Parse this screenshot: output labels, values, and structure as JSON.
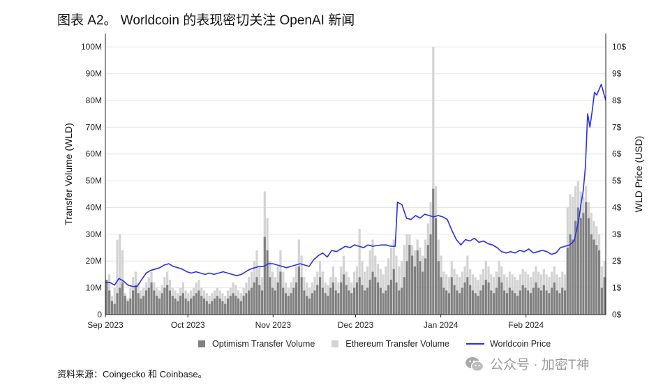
{
  "title": "图表 A2。 Worldcoin 的表现密切关注 OpenAI 新闻",
  "source": "资料来源：Coingecko 和 Coinbase。",
  "watermark": {
    "text": "公众号 · 加密T神",
    "icon": "wechat-icon"
  },
  "colors": {
    "optimism": "#808080",
    "ethereum": "#d3d3d3",
    "price": "#2a2ef0",
    "grid": "#e6e6e6",
    "axis": "#222222"
  },
  "chart_data": {
    "type": "bar+line",
    "title": "",
    "ylabel_left": "Transfer Volume (WLD)",
    "ylabel_right": "WLD Price (USD)",
    "ylim_left": [
      0,
      105
    ],
    "ylim_right": [
      0,
      10.5
    ],
    "yticks_left": [
      "0",
      "10M",
      "20M",
      "30M",
      "40M",
      "50M",
      "60M",
      "70M",
      "80M",
      "90M",
      "100M"
    ],
    "yticks_right": [
      "0$",
      "1$",
      "2$",
      "3$",
      "4$",
      "5$",
      "6$",
      "7$",
      "8$",
      "9$",
      "10$"
    ],
    "xticks": [
      "Sep 2023",
      "Oct 2023",
      "Nov 2023",
      "Dec 2023",
      "Jan 2024",
      "Feb 2024"
    ],
    "x_range_days": [
      0,
      182
    ],
    "grid": "horizontal",
    "legend_position": "bottom",
    "series": [
      {
        "name": "Optimism Transfer Volume",
        "kind": "bar",
        "unit": "M WLD",
        "values": [
          13,
          9,
          5,
          4,
          8,
          10,
          12,
          7,
          5,
          6,
          9,
          11,
          8,
          6,
          7,
          9,
          10,
          12,
          9,
          7,
          6,
          8,
          10,
          11,
          9,
          7,
          6,
          5,
          7,
          8,
          6,
          5,
          6,
          7,
          8,
          9,
          7,
          6,
          5,
          4,
          5,
          6,
          7,
          6,
          5,
          4,
          6,
          7,
          8,
          7,
          6,
          5,
          7,
          8,
          9,
          10,
          12,
          14,
          11,
          9,
          29,
          24,
          14,
          10,
          9,
          12,
          16,
          10,
          8,
          7,
          8,
          10,
          12,
          18,
          14,
          9,
          7,
          6,
          8,
          9,
          11,
          14,
          10,
          8,
          7,
          10,
          12,
          9,
          8,
          12,
          15,
          11,
          9,
          8,
          10,
          12,
          14,
          11,
          9,
          10,
          13,
          16,
          14,
          12,
          10,
          8,
          9,
          11,
          13,
          17,
          12,
          9,
          10,
          14,
          20,
          26,
          22,
          18,
          24,
          20,
          16,
          21,
          26,
          30,
          47,
          36,
          20,
          14,
          10,
          9,
          8,
          14,
          11,
          9,
          8,
          10,
          12,
          14,
          11,
          9,
          8,
          7,
          9,
          11,
          13,
          12,
          9,
          8,
          10,
          14,
          12,
          9,
          8,
          10,
          9,
          8,
          7,
          9,
          11,
          10,
          9,
          8,
          10,
          12,
          10,
          9,
          11,
          9,
          8,
          10,
          12,
          9,
          8,
          10,
          9,
          25,
          30,
          28,
          35,
          40,
          36,
          38,
          42,
          36,
          30,
          28,
          26,
          24,
          10,
          14
        ]
      },
      {
        "name": "Ethereum Transfer Volume",
        "kind": "bar",
        "unit": "M WLD",
        "values": [
          12,
          15,
          7,
          10,
          28,
          30,
          24,
          8,
          6,
          10,
          14,
          16,
          12,
          9,
          10,
          12,
          14,
          16,
          12,
          10,
          9,
          11,
          14,
          16,
          13,
          10,
          9,
          8,
          10,
          12,
          9,
          8,
          9,
          10,
          12,
          13,
          10,
          9,
          8,
          7,
          8,
          9,
          10,
          9,
          8,
          7,
          9,
          10,
          12,
          11,
          9,
          8,
          10,
          12,
          14,
          16,
          20,
          24,
          18,
          14,
          46,
          36,
          20,
          16,
          14,
          18,
          24,
          16,
          12,
          10,
          12,
          14,
          18,
          28,
          22,
          14,
          12,
          10,
          12,
          14,
          16,
          20,
          16,
          12,
          11,
          14,
          18,
          14,
          12,
          18,
          22,
          16,
          14,
          12,
          16,
          18,
          32,
          20,
          16,
          18,
          24,
          28,
          22,
          19,
          17,
          15,
          18,
          21,
          25,
          28,
          22,
          18,
          20,
          26,
          30,
          30,
          26,
          24,
          28,
          25,
          22,
          28,
          34,
          42,
          100,
          48,
          28,
          22,
          16,
          15,
          14,
          20,
          17,
          15,
          14,
          16,
          18,
          22,
          17,
          15,
          14,
          13,
          15,
          17,
          20,
          18,
          15,
          14,
          16,
          20,
          18,
          15,
          14,
          16,
          15,
          14,
          13,
          15,
          17,
          16,
          15,
          14,
          16,
          18,
          16,
          15,
          17,
          15,
          14,
          16,
          18,
          15,
          14,
          16,
          15,
          40,
          45,
          44,
          48,
          50,
          46,
          44,
          48,
          42,
          38,
          35,
          33,
          30,
          18,
          20
        ]
      },
      {
        "name": "Worldcoin Price",
        "kind": "line",
        "unit": "USD",
        "points": [
          [
            0,
            1.2
          ],
          [
            2,
            1.2
          ],
          [
            4,
            1.1
          ],
          [
            6,
            1.35
          ],
          [
            8,
            1.25
          ],
          [
            10,
            1.1
          ],
          [
            12,
            1.05
          ],
          [
            14,
            1.05
          ],
          [
            16,
            1.3
          ],
          [
            18,
            1.55
          ],
          [
            20,
            1.65
          ],
          [
            22,
            1.7
          ],
          [
            24,
            1.75
          ],
          [
            26,
            1.85
          ],
          [
            28,
            1.9
          ],
          [
            30,
            1.8
          ],
          [
            32,
            1.75
          ],
          [
            34,
            1.7
          ],
          [
            36,
            1.6
          ],
          [
            38,
            1.55
          ],
          [
            40,
            1.6
          ],
          [
            42,
            1.55
          ],
          [
            44,
            1.5
          ],
          [
            46,
            1.55
          ],
          [
            48,
            1.5
          ],
          [
            50,
            1.55
          ],
          [
            52,
            1.6
          ],
          [
            54,
            1.55
          ],
          [
            56,
            1.5
          ],
          [
            58,
            1.45
          ],
          [
            60,
            1.5
          ],
          [
            62,
            1.6
          ],
          [
            64,
            1.7
          ],
          [
            66,
            1.75
          ],
          [
            68,
            1.8
          ],
          [
            70,
            1.8
          ],
          [
            72,
            1.9
          ],
          [
            74,
            1.9
          ],
          [
            76,
            1.85
          ],
          [
            78,
            1.8
          ],
          [
            80,
            1.75
          ],
          [
            82,
            1.8
          ],
          [
            84,
            1.85
          ],
          [
            86,
            1.9
          ],
          [
            88,
            1.85
          ],
          [
            90,
            1.8
          ],
          [
            92,
            2.05
          ],
          [
            94,
            2.2
          ],
          [
            96,
            2.3
          ],
          [
            98,
            2.15
          ],
          [
            100,
            2.4
          ],
          [
            102,
            2.35
          ],
          [
            104,
            2.45
          ],
          [
            106,
            2.55
          ],
          [
            108,
            2.5
          ],
          [
            110,
            2.6
          ],
          [
            112,
            2.55
          ],
          [
            114,
            2.5
          ],
          [
            116,
            2.6
          ],
          [
            118,
            2.55
          ],
          [
            120,
            2.58
          ],
          [
            122,
            2.6
          ],
          [
            124,
            2.6
          ],
          [
            126,
            2.55
          ],
          [
            128,
            2.55
          ],
          [
            129,
            4.2
          ],
          [
            131,
            4.1
          ],
          [
            133,
            3.6
          ],
          [
            135,
            3.55
          ],
          [
            137,
            3.7
          ],
          [
            139,
            3.6
          ],
          [
            141,
            3.75
          ],
          [
            143,
            3.7
          ],
          [
            145,
            3.65
          ],
          [
            147,
            3.7
          ],
          [
            149,
            3.65
          ],
          [
            151,
            3.55
          ],
          [
            153,
            3.15
          ],
          [
            155,
            2.8
          ],
          [
            157,
            2.6
          ],
          [
            159,
            2.8
          ],
          [
            161,
            2.75
          ],
          [
            163,
            2.85
          ],
          [
            165,
            2.7
          ],
          [
            167,
            2.75
          ],
          [
            169,
            2.65
          ],
          [
            171,
            2.6
          ],
          [
            173,
            2.5
          ],
          [
            175,
            2.35
          ],
          [
            177,
            2.3
          ],
          [
            179,
            2.35
          ],
          [
            181,
            2.3
          ],
          [
            183,
            2.4
          ],
          [
            185,
            2.35
          ],
          [
            187,
            2.45
          ],
          [
            189,
            2.3
          ],
          [
            191,
            2.35
          ],
          [
            193,
            2.4
          ],
          [
            195,
            2.35
          ],
          [
            197,
            2.25
          ],
          [
            199,
            2.3
          ],
          [
            201,
            2.5
          ],
          [
            203,
            2.55
          ],
          [
            205,
            2.6
          ],
          [
            207,
            2.75
          ],
          [
            208,
            3.1
          ],
          [
            209,
            3.5
          ],
          [
            210,
            4.1
          ],
          [
            211,
            4.6
          ],
          [
            212,
            5.5
          ],
          [
            213,
            7.5
          ],
          [
            214,
            7.0
          ],
          [
            215,
            7.6
          ],
          [
            216,
            8.3
          ],
          [
            217,
            8.2
          ],
          [
            218,
            8.4
          ],
          [
            219,
            8.6
          ],
          [
            220,
            8.3
          ],
          [
            221,
            8.0
          ]
        ]
      }
    ]
  }
}
